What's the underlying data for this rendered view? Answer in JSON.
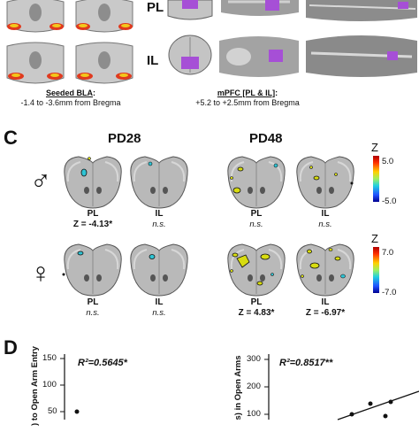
{
  "panel_b": {
    "pl_label": "PL",
    "il_label": "IL",
    "bla_caption_title": "Seeded BLA",
    "bla_caption_colon": ":",
    "bla_caption_range": "-1.4 to -3.6mm from Bregma",
    "mpfc_caption_title": "mPFC [PL & IL]",
    "mpfc_caption_colon": ":",
    "mpfc_caption_range": "+5.2 to +2.5mm from Bregma"
  },
  "panel_c": {
    "letter": "C",
    "pd28": "PD28",
    "pd48": "PD48",
    "male_symbol": "♂",
    "female_symbol": "♀",
    "male": {
      "pd28_pl_label": "PL",
      "pd28_pl_stat": "Z = -4.13*",
      "pd28_il_label": "IL",
      "pd28_il_stat": "n.s.",
      "pd48_pl_label": "PL",
      "pd48_pl_stat": "n.s.",
      "pd48_il_label": "IL",
      "pd48_il_stat": "n.s."
    },
    "female": {
      "pd28_pl_label": "PL",
      "pd28_pl_stat": "n.s.",
      "pd28_il_label": "IL",
      "pd28_il_stat": "n.s.",
      "pd48_pl_label": "PL",
      "pd48_pl_stat": "Z = 4.83*",
      "pd48_il_label": "IL",
      "pd48_il_stat": "Z = -6.97*"
    },
    "male_colorbar": {
      "title": "Z",
      "max": "5.0",
      "min": "-5.0"
    },
    "female_colorbar": {
      "title": "Z",
      "max": "7.0",
      "min": "-7.0"
    }
  },
  "panel_d": {
    "letter": "D",
    "left_r2": "R²=0.5645*",
    "left_ylabel": ") to Open Arm Entry",
    "left_ticks": [
      "150",
      "100",
      "50"
    ],
    "right_r2": "R²=0.8517**",
    "right_ylabel": "s) in Open Arms",
    "right_ticks": [
      "300",
      "200",
      "100"
    ]
  },
  "colors": {
    "brain_gray": "#b5b5b5",
    "mpfc_purple": "#a64fd6",
    "bla_red": "#e03a1e",
    "bla_yellow": "#f3c81b",
    "cluster_yellow": "#d8dc10",
    "cluster_cyan": "#2fc4d4"
  }
}
